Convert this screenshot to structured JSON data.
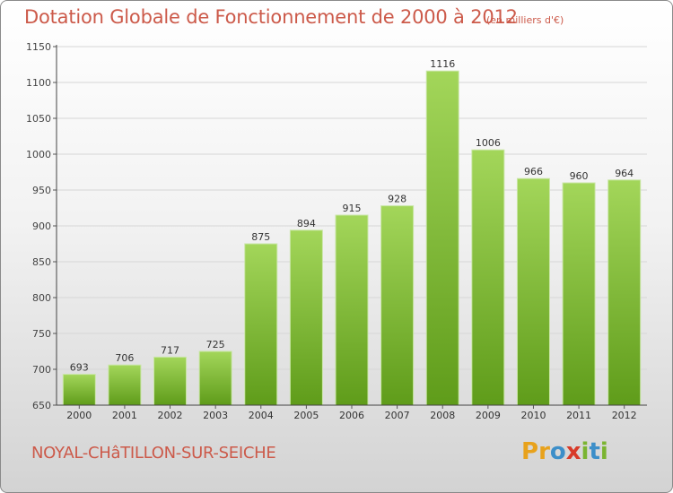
{
  "header": {
    "title": "Dotation Globale de Fonctionnement de 2000 à 2012",
    "units": "(en milliers d'€)"
  },
  "footer": {
    "commune": "NOYAL-CHâTILLON-SUR-SEICHE",
    "logo_text": "Proxiti",
    "logo_letters": [
      {
        "ch": "P",
        "color": "#e8a21c"
      },
      {
        "ch": "r",
        "color": "#e8a21c"
      },
      {
        "ch": "o",
        "color": "#3d8fc9"
      },
      {
        "ch": "x",
        "color": "#d83b2a"
      },
      {
        "ch": "i",
        "color": "#7bb431"
      },
      {
        "ch": "t",
        "color": "#3d8fc9"
      },
      {
        "ch": "i",
        "color": "#7bb431"
      }
    ]
  },
  "colors": {
    "title": "#cc5a4a",
    "bar_top": "#a3d65a",
    "bar_bottom": "#5f9c1a",
    "grid": "#d6d6d6"
  },
  "chart_data": {
    "type": "bar",
    "title": "Dotation Globale de Fonctionnement de 2000 à 2012",
    "subtitle": "(en milliers d'€)",
    "xlabel": "",
    "ylabel": "",
    "categories": [
      "2000",
      "2001",
      "2002",
      "2003",
      "2004",
      "2005",
      "2006",
      "2007",
      "2008",
      "2009",
      "2010",
      "2011",
      "2012"
    ],
    "values": [
      693,
      706,
      717,
      725,
      875,
      894,
      915,
      928,
      1116,
      1006,
      966,
      960,
      964
    ],
    "ylim": [
      650,
      1150
    ],
    "yticks": [
      650,
      700,
      750,
      800,
      850,
      900,
      950,
      1000,
      1050,
      1100,
      1150
    ],
    "grid": true,
    "legend": "none"
  }
}
